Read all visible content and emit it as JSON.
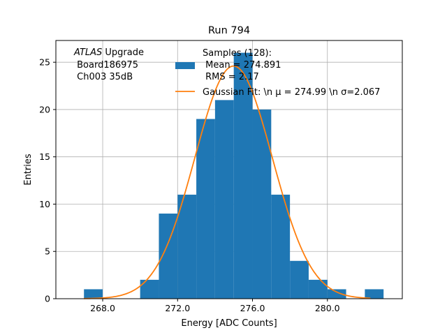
{
  "chart_data": {
    "type": "bar",
    "title": "Run 794",
    "xlabel": "Energy [ADC Counts]",
    "ylabel": "Entries",
    "xlim": [
      265.5,
      284.0
    ],
    "ylim": [
      0,
      27.3
    ],
    "grid": true,
    "x_ticks": [
      268,
      272,
      276,
      280
    ],
    "x_tick_labels": [
      "268.0",
      "272.0",
      "276.0",
      "280.0"
    ],
    "y_ticks": [
      0,
      5,
      10,
      15,
      20,
      25
    ],
    "y_tick_labels": [
      "0",
      "5",
      "10",
      "15",
      "20",
      "25"
    ],
    "histogram": {
      "bin_edges": [
        267,
        268,
        269,
        270,
        271,
        272,
        273,
        274,
        275,
        276,
        277,
        278,
        279,
        280,
        281,
        282,
        283
      ],
      "counts": [
        1,
        0,
        0,
        2,
        9,
        11,
        19,
        21,
        26,
        20,
        11,
        4,
        2,
        1,
        0,
        1
      ],
      "color": "#1f77b4"
    },
    "fit": {
      "mu": 274.99,
      "sigma": 2.067,
      "amplitude": 24.6,
      "x_range": [
        267.0,
        282.3
      ],
      "color": "#ff7f0e"
    },
    "annotation": {
      "line1_italic": "ATLAS",
      "line1_rest": " Upgrade",
      "line2": " Board186975",
      "line3": " Ch003 35dB"
    },
    "legend": {
      "placement": "top-right",
      "samples_lines": [
        "Samples (128):",
        " Mean = 274.891",
        " RMS = 2.17"
      ],
      "fit_label": "Gaussian Fit: \\n μ = 274.99 \\n σ=2.067"
    }
  }
}
